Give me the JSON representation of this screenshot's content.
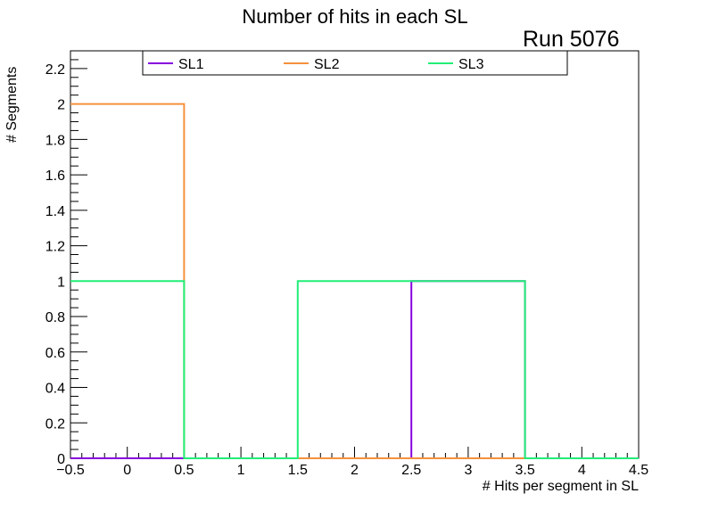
{
  "chart_data": {
    "type": "line",
    "title": "Number of hits in each SL",
    "annotation": "Run 5076",
    "xlabel": "# Hits per segment in SL",
    "ylabel": "# Segments",
    "xlim": [
      -0.5,
      4.5
    ],
    "ylim": [
      0,
      2.3
    ],
    "x_ticks": [
      "−0.5",
      "0",
      "0.5",
      "1",
      "1.5",
      "2",
      "2.5",
      "3",
      "3.5",
      "4",
      "4.5"
    ],
    "y_ticks": [
      "0",
      "0.2",
      "0.4",
      "0.6",
      "0.8",
      "1",
      "1.2",
      "1.4",
      "1.6",
      "1.8",
      "2",
      "2.2"
    ],
    "bin_edges": [
      -0.5,
      0.5,
      1.5,
      2.5,
      3.5,
      4.5
    ],
    "legend_position": "top",
    "series": [
      {
        "name": "SL1",
        "color": "#8800dd",
        "values": [
          0,
          0,
          0,
          1,
          0
        ]
      },
      {
        "name": "SL2",
        "color": "#f5913d",
        "values": [
          2,
          0,
          0,
          0,
          0
        ]
      },
      {
        "name": "SL3",
        "color": "#22ee77",
        "values": [
          1,
          0,
          1,
          1,
          0
        ]
      }
    ]
  }
}
